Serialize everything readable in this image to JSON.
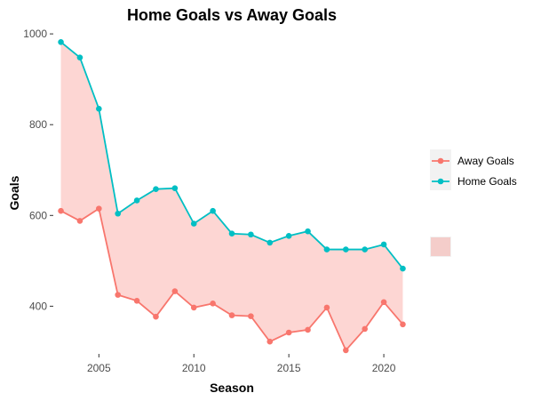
{
  "chart_data": {
    "type": "line",
    "title": "Home Goals vs Away Goals",
    "xlabel": "Season",
    "ylabel": "Goals",
    "xlim": [
      2002.6,
      2021.4
    ],
    "ylim": [
      295,
      1010
    ],
    "x_ticks": [
      2005,
      2010,
      2015,
      2020
    ],
    "y_ticks": [
      400,
      600,
      800,
      1000
    ],
    "grid": false,
    "legend_position": "right",
    "x": [
      2003,
      2004,
      2005,
      2006,
      2007,
      2008,
      2009,
      2010,
      2011,
      2012,
      2013,
      2014,
      2015,
      2016,
      2017,
      2018,
      2019,
      2020,
      2021
    ],
    "series": [
      {
        "name": "Away Goals",
        "color": "#F8766D",
        "values": [
          610,
          588,
          615,
          425,
          412,
          377,
          433,
          397,
          406,
          380,
          378,
          322,
          342,
          348,
          397,
          303,
          350,
          409,
          360
        ]
      },
      {
        "name": "Home Goals",
        "color": "#00BFC4",
        "values": [
          982,
          948,
          835,
          604,
          633,
          658,
          660,
          582,
          610,
          560,
          558,
          540,
          555,
          565,
          525,
          525,
          525,
          536,
          483
        ]
      }
    ],
    "fill_between": {
      "color": "#F8766D",
      "opacity": 0.3
    }
  }
}
